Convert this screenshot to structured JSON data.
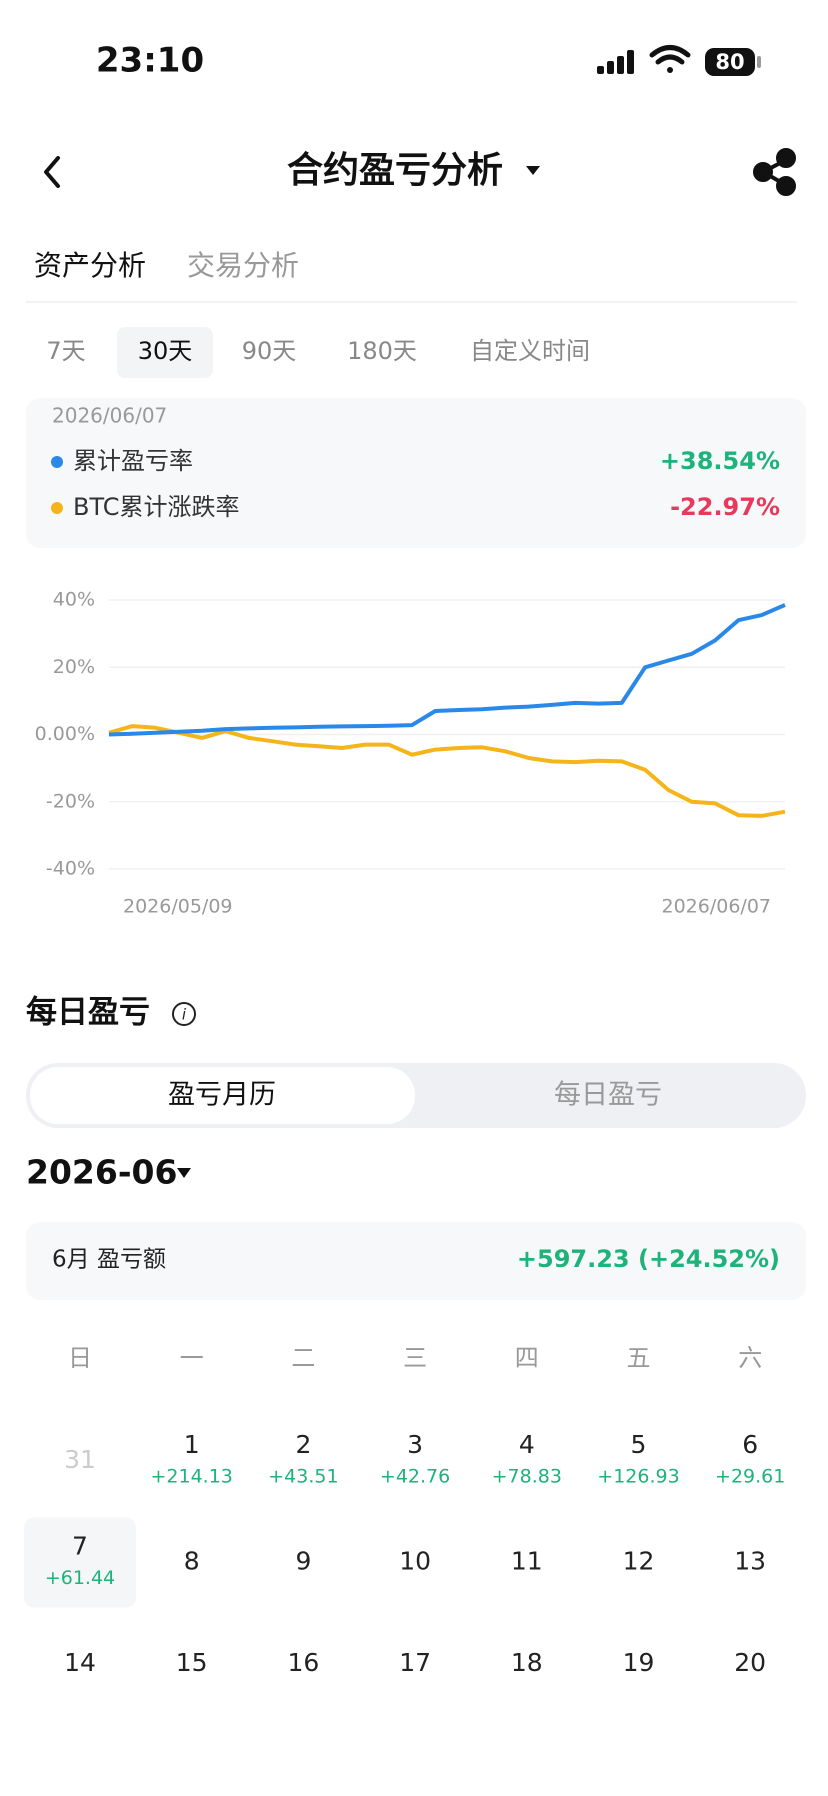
{
  "status_bar": {
    "time": "23:10",
    "battery": "80"
  },
  "header": {
    "title": "合约盈亏分析"
  },
  "tabs": [
    "资产分析",
    "交易分析"
  ],
  "ranges": [
    "7天",
    "30天",
    "90天",
    "180天",
    "自定义时间"
  ],
  "chart_data": {
    "type": "line",
    "categories": [
      "2026/05/09",
      null,
      null,
      null,
      null,
      null,
      null,
      null,
      null,
      null,
      null,
      null,
      null,
      null,
      null,
      null,
      null,
      null,
      null,
      null,
      null,
      null,
      null,
      null,
      null,
      null,
      null,
      null,
      null,
      "2026/06/07"
    ],
    "series": [
      {
        "name": "累计盈亏率",
        "color": "#2a88e8",
        "values": [
          0,
          0.2,
          0.5,
          0.8,
          1.1,
          1.6,
          1.8,
          2,
          2.1,
          2.3,
          2.4,
          2.5,
          2.6,
          2.8,
          7,
          7.3,
          7.5,
          8,
          8.3,
          8.8,
          9.4,
          9.2,
          9.4,
          20,
          22,
          24,
          28,
          34,
          35.5,
          38.54
        ]
      },
      {
        "name": "BTC累计涨跌率",
        "color": "#f4b41a",
        "values": [
          0.5,
          2.5,
          2,
          0.5,
          -1,
          1,
          -1,
          -2,
          -3,
          -3.5,
          -4,
          -3,
          -3,
          -6,
          -4.5,
          -4,
          -3.8,
          -5,
          -7,
          -8,
          -8.2,
          -7.8,
          -8,
          -10.5,
          -16.5,
          -20,
          -20.5,
          -24,
          -24.2,
          -22.97
        ]
      }
    ],
    "tooltip_labels": [
      "+38.54%",
      "-22.97%"
    ],
    "ylim": [
      -40,
      40
    ],
    "yticks": [
      {
        "value": 40,
        "label": "40%"
      },
      {
        "value": 20,
        "label": "20%"
      },
      {
        "value": 0,
        "label": "0.00%"
      },
      {
        "value": -20,
        "label": "-20%"
      },
      {
        "value": -40,
        "label": "-40%"
      }
    ],
    "grid": true
  },
  "daily": {
    "title": "每日盈亏",
    "segments": [
      "盈亏月历",
      "每日盈亏"
    ],
    "month": "2026-06",
    "summary_label": "6月 盈亏额",
    "summary_value": "+597.23 (+24.52%)"
  },
  "calendar": {
    "weekdays": [
      "日",
      "一",
      "二",
      "三",
      "四",
      "五",
      "六"
    ],
    "leading_days": [
      31
    ],
    "selected": 7,
    "days": [
      {
        "day": 1,
        "pnl": "+214.13"
      },
      {
        "day": 2,
        "pnl": "+43.51"
      },
      {
        "day": 3,
        "pnl": "+42.76"
      },
      {
        "day": 4,
        "pnl": "+78.83"
      },
      {
        "day": 5,
        "pnl": "+126.93"
      },
      {
        "day": 6,
        "pnl": "+29.61"
      },
      {
        "day": 7,
        "pnl": "+61.44"
      },
      {
        "day": 8
      },
      {
        "day": 9
      },
      {
        "day": 10
      },
      {
        "day": 11
      },
      {
        "day": 12
      },
      {
        "day": 13
      },
      {
        "day": 14
      },
      {
        "day": 15
      },
      {
        "day": 16
      },
      {
        "day": 17
      },
      {
        "day": 18
      },
      {
        "day": 19
      },
      {
        "day": 20
      }
    ]
  }
}
